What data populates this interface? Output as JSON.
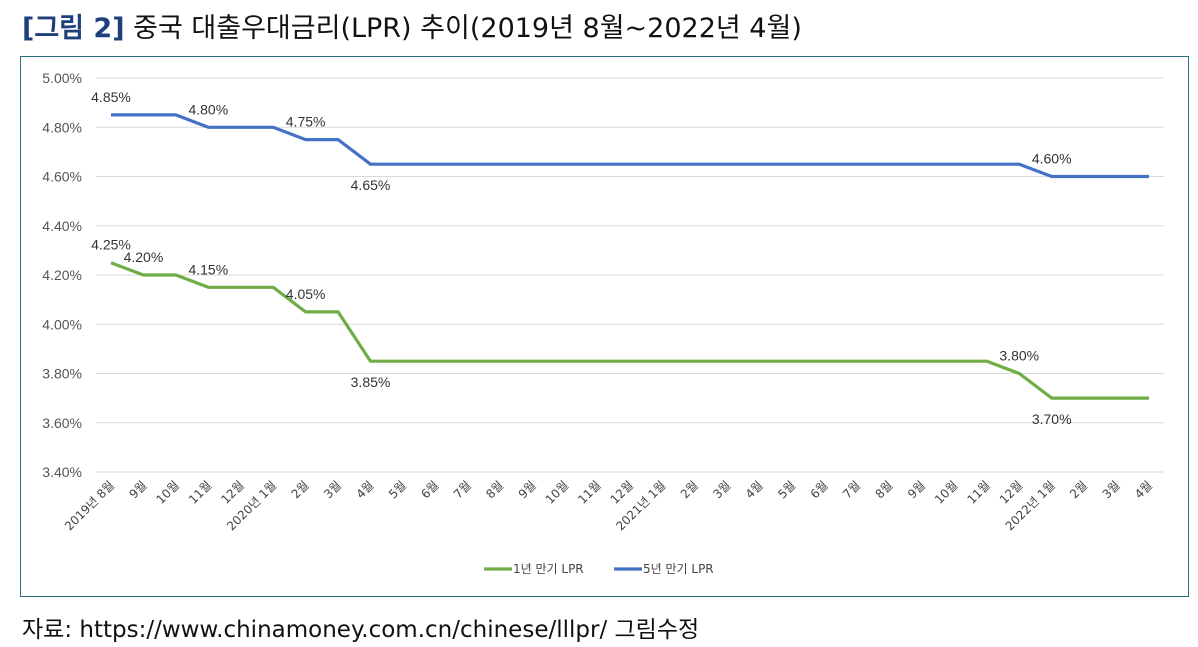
{
  "figure_num": "[그림 2]",
  "title": "중국 대출우대금리(LPR) 추이(2019년 8월~2022년 4월)",
  "source": "자료: https://www.chinamoney.com.cn/chinese/lllpr/ 그림수정",
  "chart_data": {
    "type": "line",
    "title": "",
    "xlabel": "",
    "ylabel": "",
    "ylim": [
      3.4,
      5.0
    ],
    "ytick_step": 0.2,
    "y_unit": "%",
    "grid": true,
    "legend_position": "bottom",
    "categories": [
      "2019년 8월",
      "9월",
      "10월",
      "11월",
      "12월",
      "2020년 1월",
      "2월",
      "3월",
      "4월",
      "5월",
      "6월",
      "7월",
      "8월",
      "9월",
      "10월",
      "11월",
      "12월",
      "2021년 1월",
      "2월",
      "3월",
      "4월",
      "5월",
      "6월",
      "7월",
      "8월",
      "9월",
      "10월",
      "11월",
      "12월",
      "2022년 1월",
      "2월",
      "3월",
      "4월"
    ],
    "series": [
      {
        "name": "1년 만기 LPR",
        "color": "#70ad47",
        "values": [
          4.25,
          4.2,
          4.2,
          4.15,
          4.15,
          4.15,
          4.05,
          4.05,
          3.85,
          3.85,
          3.85,
          3.85,
          3.85,
          3.85,
          3.85,
          3.85,
          3.85,
          3.85,
          3.85,
          3.85,
          3.85,
          3.85,
          3.85,
          3.85,
          3.85,
          3.85,
          3.85,
          3.85,
          3.8,
          3.7,
          3.7,
          3.7,
          3.7
        ]
      },
      {
        "name": "5년 만기 LPR",
        "color": "#4472c4",
        "values": [
          4.85,
          4.85,
          4.85,
          4.8,
          4.8,
          4.8,
          4.75,
          4.75,
          4.65,
          4.65,
          4.65,
          4.65,
          4.65,
          4.65,
          4.65,
          4.65,
          4.65,
          4.65,
          4.65,
          4.65,
          4.65,
          4.65,
          4.65,
          4.65,
          4.65,
          4.65,
          4.65,
          4.65,
          4.65,
          4.6,
          4.6,
          4.6,
          4.6
        ]
      }
    ],
    "data_labels": [
      {
        "series": 1,
        "index": 0,
        "text": "4.85%",
        "pos": "above"
      },
      {
        "series": 1,
        "index": 3,
        "text": "4.80%",
        "pos": "above"
      },
      {
        "series": 1,
        "index": 6,
        "text": "4.75%",
        "pos": "above"
      },
      {
        "series": 1,
        "index": 8,
        "text": "4.65%",
        "pos": "below"
      },
      {
        "series": 1,
        "index": 29,
        "text": "4.60%",
        "pos": "above"
      },
      {
        "series": 0,
        "index": 0,
        "text": "4.25%",
        "pos": "above"
      },
      {
        "series": 0,
        "index": 1,
        "text": "4.20%",
        "pos": "above"
      },
      {
        "series": 0,
        "index": 3,
        "text": "4.15%",
        "pos": "above"
      },
      {
        "series": 0,
        "index": 6,
        "text": "4.05%",
        "pos": "above"
      },
      {
        "series": 0,
        "index": 8,
        "text": "3.85%",
        "pos": "below"
      },
      {
        "series": 0,
        "index": 28,
        "text": "3.80%",
        "pos": "above"
      },
      {
        "series": 0,
        "index": 29,
        "text": "3.70%",
        "pos": "below"
      }
    ]
  }
}
